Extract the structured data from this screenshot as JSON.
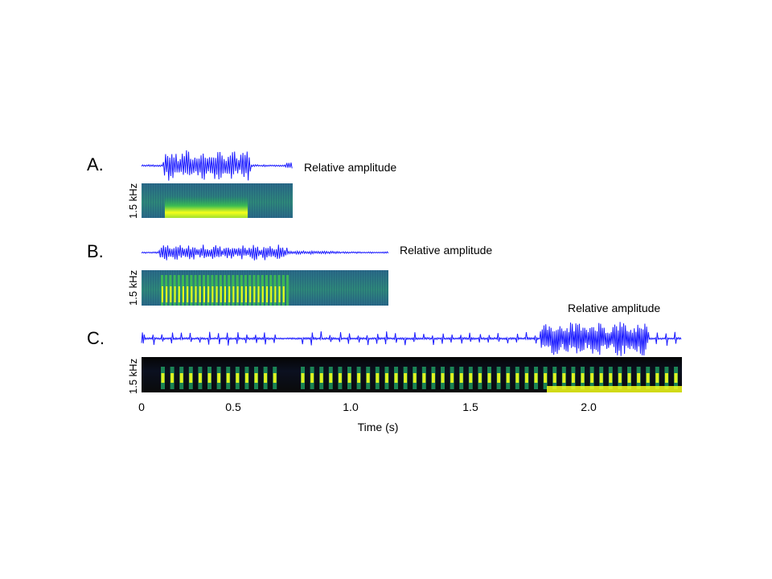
{
  "panels": [
    {
      "label": "A.",
      "amplitude_label": "Relative amplitude",
      "freq_label": "1.5 kHz"
    },
    {
      "label": "B.",
      "amplitude_label": "Relative amplitude",
      "freq_label": "1.5 kHz"
    },
    {
      "label": "C.",
      "amplitude_label": "Relative amplitude",
      "freq_label": "1.5 kHz"
    }
  ],
  "time_axis": {
    "title": "Time (s)",
    "ticks": [
      "0",
      "0.5",
      "1.0",
      "1.5",
      "2.0"
    ]
  },
  "colors": {
    "waveform": "#1a1aff",
    "spectrogram_background": "#2a6a8a",
    "spectrogram_background_dark": "#0a0a0a",
    "spectrogram_energy_low": "#1f9a60",
    "spectrogram_energy_high": "#f5ff1a"
  }
}
